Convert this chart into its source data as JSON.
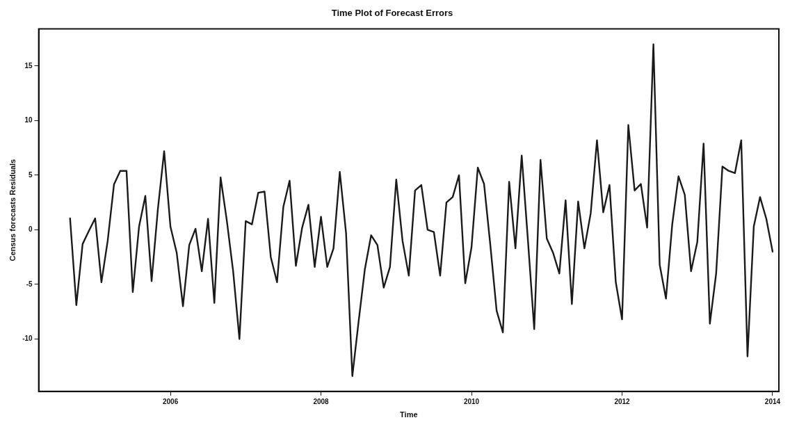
{
  "chart_data": {
    "type": "line",
    "title": "Time Plot of Forecast Errors",
    "xlabel": "Time",
    "ylabel": "Census forecasts Residuals",
    "x": [
      "2004-09",
      "2004-10",
      "2004-11",
      "2004-12",
      "2005-01",
      "2005-02",
      "2005-03",
      "2005-04",
      "2005-05",
      "2005-06",
      "2005-07",
      "2005-08",
      "2005-09",
      "2005-10",
      "2005-11",
      "2005-12",
      "2006-01",
      "2006-02",
      "2006-03",
      "2006-04",
      "2006-05",
      "2006-06",
      "2006-07",
      "2006-08",
      "2006-09",
      "2006-10",
      "2006-11",
      "2006-12",
      "2007-01",
      "2007-02",
      "2007-03",
      "2007-04",
      "2007-05",
      "2007-06",
      "2007-07",
      "2007-08",
      "2007-09",
      "2007-10",
      "2007-11",
      "2007-12",
      "2008-01",
      "2008-02",
      "2008-03",
      "2008-04",
      "2008-05",
      "2008-06",
      "2008-07",
      "2008-08",
      "2008-09",
      "2008-10",
      "2008-11",
      "2008-12",
      "2009-01",
      "2009-02",
      "2009-03",
      "2009-04",
      "2009-05",
      "2009-06",
      "2009-07",
      "2009-08",
      "2009-09",
      "2009-10",
      "2009-11",
      "2009-12",
      "2010-01",
      "2010-02",
      "2010-03",
      "2010-04",
      "2010-05",
      "2010-06",
      "2010-07",
      "2010-08",
      "2010-09",
      "2010-10",
      "2010-11",
      "2010-12",
      "2011-01",
      "2011-02",
      "2011-03",
      "2011-04",
      "2011-05",
      "2011-06",
      "2011-07",
      "2011-08",
      "2011-09",
      "2011-10",
      "2011-11",
      "2011-12",
      "2012-01",
      "2012-02",
      "2012-03",
      "2012-04",
      "2012-05",
      "2012-06",
      "2012-07",
      "2012-08",
      "2012-09",
      "2012-10",
      "2012-11",
      "2012-12",
      "2013-01",
      "2013-02",
      "2013-03",
      "2013-04",
      "2013-05",
      "2013-06",
      "2013-07",
      "2013-08",
      "2013-09",
      "2013-10",
      "2013-11",
      "2013-12",
      "2014-01"
    ],
    "series": [
      {
        "color": "#1a1a1a",
        "values": [
          1.05,
          -6.9,
          -1.3,
          -0.1,
          1.05,
          -4.8,
          -1.0,
          4.15,
          5.4,
          5.4,
          -5.7,
          0.3,
          3.1,
          -4.7,
          1.9,
          7.2,
          0.3,
          -2.1,
          -7.0,
          -1.4,
          0.1,
          -3.8,
          1.0,
          -6.7,
          4.8,
          0.8,
          -3.8,
          -10.0,
          0.8,
          0.5,
          3.4,
          3.5,
          -2.5,
          -4.8,
          2.1,
          4.5,
          -3.3,
          0.2,
          2.3,
          -3.4,
          1.2,
          -3.4,
          -1.7,
          5.3,
          -0.3,
          -13.4,
          -8.4,
          -3.6,
          -0.5,
          -1.4,
          -5.3,
          -3.4,
          4.6,
          -1.0,
          -4.2,
          3.6,
          4.1,
          0.0,
          -0.2,
          -4.2,
          2.5,
          3.0,
          5.0,
          -4.9,
          -1.6,
          5.7,
          4.2,
          -1.4,
          -7.4,
          -9.4,
          4.4,
          -1.7,
          6.8,
          -1.0,
          -9.1,
          6.4,
          -0.8,
          -2.1,
          -4.0,
          2.7,
          -6.8,
          2.6,
          -1.7,
          1.5,
          8.2,
          1.6,
          4.1,
          -4.8,
          -8.2,
          9.6,
          3.6,
          4.2,
          0.2,
          17.0,
          -3.2,
          -6.3,
          0.5,
          4.9,
          3.2,
          -3.8,
          -1.1,
          7.9,
          -8.6,
          -4.0,
          5.8,
          5.4,
          5.2,
          8.2,
          -11.6,
          0.3,
          3.0,
          1.0,
          -2.0
        ]
      }
    ],
    "xlim": [
      "2004-04",
      "2014-02"
    ],
    "xticks": [
      "2006",
      "2008",
      "2010",
      "2012",
      "2014"
    ],
    "ylim": [
      -14.8,
      18.4
    ],
    "yticks": [
      -10,
      -5,
      0,
      5,
      10,
      15
    ],
    "marker": "none",
    "line_style": "solid"
  }
}
